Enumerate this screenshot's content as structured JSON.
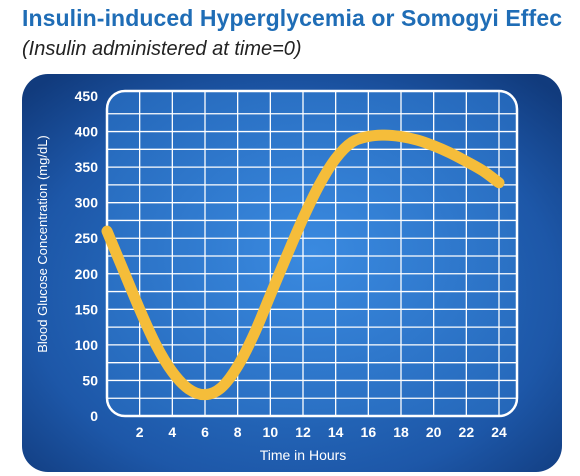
{
  "header": {
    "title": "Insulin-induced Hyperglycemia or Somogyi Effec",
    "subtitle": "(Insulin administered at time=0)"
  },
  "chart_data": {
    "type": "line",
    "title": "Insulin-induced Hyperglycemia or Somogyi Effect",
    "subtitle": "(Insulin administered at time=0)",
    "xlabel": "Time in Hours",
    "ylabel": "Blood Glucose Concentration (mg/dL)",
    "xlim": [
      0,
      24
    ],
    "ylim": [
      0,
      450
    ],
    "x_ticks": [
      2,
      4,
      6,
      8,
      10,
      12,
      14,
      16,
      18,
      20,
      22,
      24
    ],
    "y_ticks": [
      0,
      50,
      100,
      150,
      200,
      250,
      300,
      350,
      400,
      450
    ],
    "grid": true,
    "legend": "none",
    "series": [
      {
        "x": [
          0,
          1,
          2,
          3,
          4,
          5,
          6,
          7,
          8,
          9,
          10,
          11,
          12,
          13,
          14,
          15,
          16,
          17,
          18,
          19,
          20,
          21,
          22,
          23,
          24
        ],
        "y": [
          260,
          205,
          150,
          100,
          62,
          38,
          30,
          40,
          70,
          115,
          170,
          225,
          278,
          325,
          362,
          385,
          393,
          395,
          393,
          388,
          380,
          370,
          358,
          345,
          328
        ],
        "color": "#f5bd3a"
      }
    ],
    "colors": {
      "background": "#1d4f9c",
      "plot_area": "#2a74c9",
      "grid": "#ffffff",
      "line": "#f5bd3a",
      "text": "#ffffff"
    }
  }
}
